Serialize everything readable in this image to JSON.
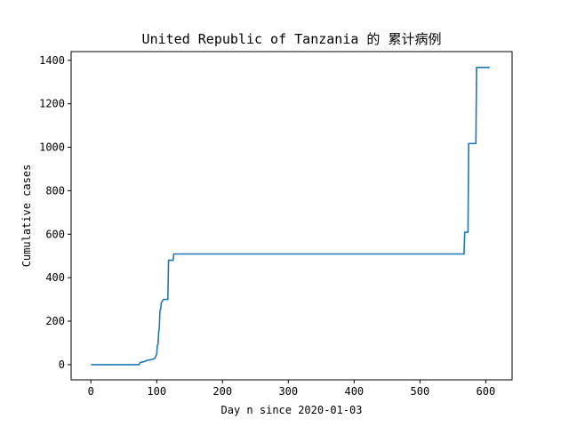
{
  "chart_data": {
    "type": "line",
    "title": "United Republic of Tanzania 的 累计病例",
    "xlabel": "Day n since 2020-01-03",
    "ylabel": "Cumulative cases",
    "xlim": [
      -30,
      640
    ],
    "ylim": [
      -70,
      1440
    ],
    "xticks": [
      0,
      100,
      200,
      300,
      400,
      500,
      600
    ],
    "yticks": [
      0,
      200,
      400,
      600,
      800,
      1000,
      1200,
      1400
    ],
    "grid": false,
    "series": [
      {
        "color": "#1f77b4",
        "x": [
          0,
          73,
          75,
          80,
          85,
          90,
          95,
          98,
          100,
          101,
          102,
          103,
          104,
          105,
          106,
          107,
          110,
          112,
          117,
          118,
          125,
          126,
          567,
          568,
          573,
          574,
          585,
          586,
          606
        ],
        "y": [
          0,
          0,
          10,
          13,
          19,
          22,
          25,
          32,
          50,
          88,
          94,
          147,
          170,
          250,
          254,
          284,
          299,
          300,
          300,
          480,
          480,
          509,
          509,
          609,
          609,
          1017,
          1017,
          1367,
          1367
        ]
      }
    ]
  }
}
